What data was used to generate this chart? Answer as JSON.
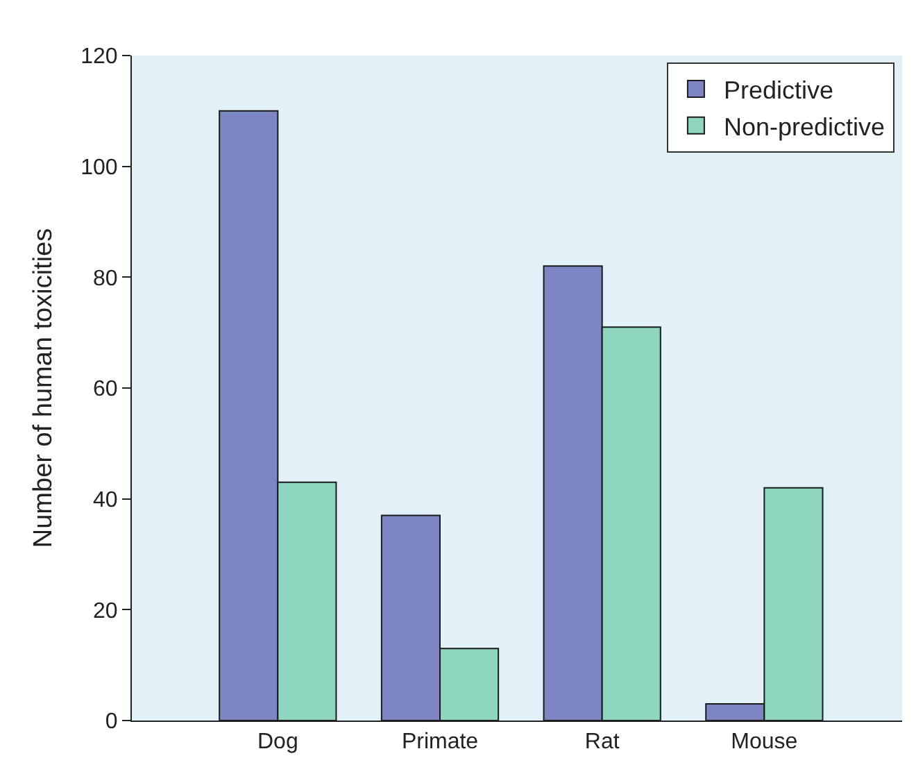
{
  "chart_data": {
    "type": "bar",
    "ylabel": "Number of human toxicities",
    "categories": [
      "Dog",
      "Primate",
      "Rat",
      "Mouse"
    ],
    "series": [
      {
        "name": "Predictive",
        "color": "#7d86c2",
        "values": [
          110,
          37,
          82,
          3
        ]
      },
      {
        "name": "Non-predictive",
        "color": "#8ed6bf",
        "values": [
          43,
          13,
          71,
          42
        ]
      }
    ],
    "ylim": [
      0,
      120
    ],
    "yticks": [
      0,
      20,
      40,
      60,
      80,
      100,
      120
    ],
    "grid": false,
    "legend": "top right"
  }
}
